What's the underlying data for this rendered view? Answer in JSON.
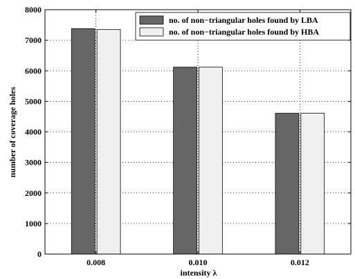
{
  "chart_data": {
    "type": "bar",
    "categories": [
      "0.008",
      "0.010",
      "0.012"
    ],
    "series": [
      {
        "name": "no. of non−triangular holes found by LBA",
        "values": [
          7380,
          6120,
          4610
        ],
        "color": "#666666"
      },
      {
        "name": "no. of non−triangular holes found by HBA",
        "values": [
          7350,
          6120,
          4610
        ],
        "color": "#f0f0f0"
      }
    ],
    "title": "",
    "xlabel": "intensity λ",
    "ylabel": "number of coverage holes",
    "ylim": [
      0,
      8000
    ],
    "yticks": [
      "0",
      "1000",
      "2000",
      "3000",
      "4000",
      "5000",
      "6000",
      "7000",
      "8000"
    ],
    "grid": true,
    "legend_position": "top-right"
  }
}
